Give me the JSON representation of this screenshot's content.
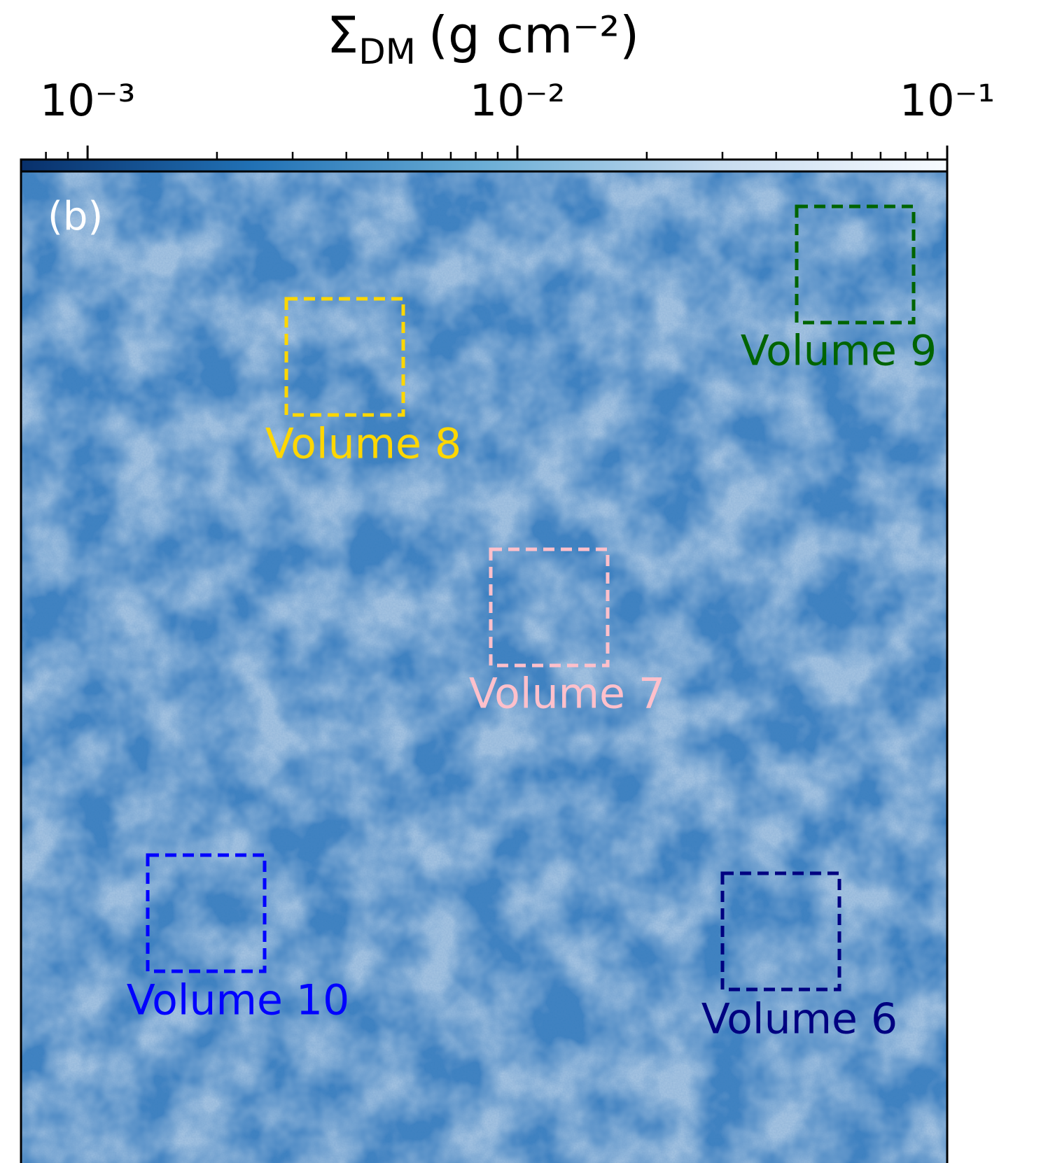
{
  "chart_data": {
    "type": "image-map",
    "panel_label": "(b)",
    "colorbar": {
      "symbol": "Σ",
      "subscript": "DM",
      "unit": "(g cm⁻²)",
      "scale": "log",
      "lim": [
        0.0007,
        0.1
      ],
      "ticks": [
        {
          "value": 0.001,
          "label": "10⁻³"
        },
        {
          "value": 0.01,
          "label": "10⁻²"
        },
        {
          "value": 0.1,
          "label": "10⁻¹"
        }
      ],
      "minor_ticks": [
        0.0008,
        0.0009,
        0.002,
        0.003,
        0.004,
        0.005,
        0.006,
        0.007,
        0.008,
        0.009,
        0.02,
        0.03,
        0.04,
        0.05,
        0.06,
        0.07,
        0.08,
        0.09
      ],
      "colors": [
        "#08306b",
        "#2171b5",
        "#6baed6",
        "#c6dbef",
        "#f7fbff"
      ]
    },
    "map_color": "#3d80c0",
    "annotations": [
      {
        "label": "Volume 8",
        "color": "#ffd700"
      },
      {
        "label": "Volume 9",
        "color": "#006400"
      },
      {
        "label": "Volume 7",
        "color": "#ffc0cb"
      },
      {
        "label": "Volume 10",
        "color": "#0000ff"
      },
      {
        "label": "Volume 6",
        "color": "#000080"
      }
    ]
  }
}
